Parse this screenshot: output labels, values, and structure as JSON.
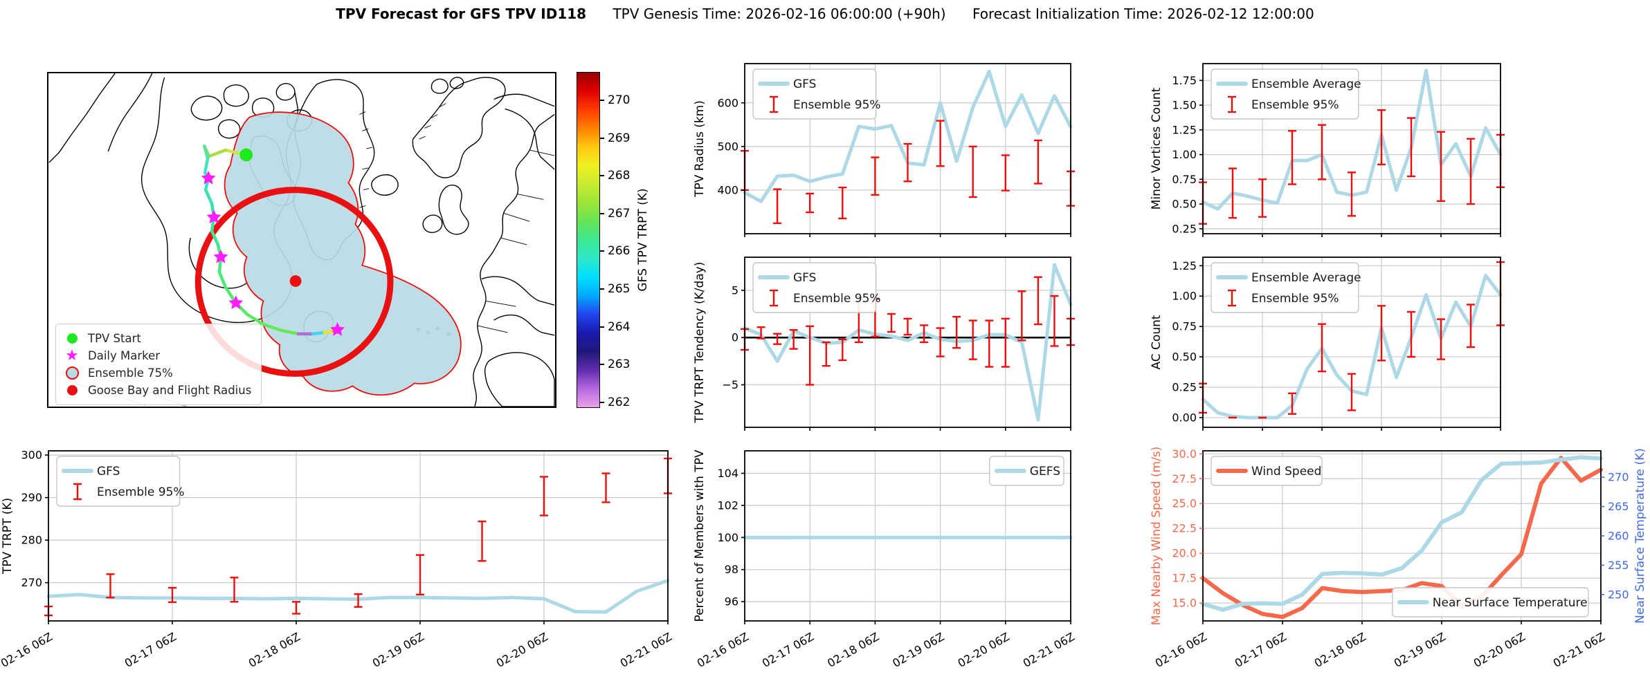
{
  "title": {
    "main": "TPV Forecast for GFS TPV ID118",
    "genesis": "TPV Genesis Time: 2026-02-16 06:00:00 (+90h)",
    "init": "Forecast Initialization Time: 2026-02-12 12:00:00"
  },
  "colors": {
    "lightblue": "#ADD8E6",
    "red": "#F10C0C",
    "tomato": "#F4694B",
    "royalblue": "#4169E1",
    "grid": "#C9C9C9",
    "ensemble_fill": "#B8DAE4",
    "ensemble_edge": "#F10C0C",
    "flight_circle": "#E81010",
    "tpv_start_green": "#1EE81E",
    "daily_marker_magenta": "#FF1CFF"
  },
  "map": {
    "legend": [
      {
        "marker": "tpv-start",
        "label": "TPV Start"
      },
      {
        "marker": "daily-marker",
        "label": "Daily Marker"
      },
      {
        "marker": "ensemble-75",
        "label": "Ensemble 75%"
      },
      {
        "marker": "goose-bay",
        "label": "Goose Bay and Flight Radius"
      }
    ],
    "colorbar": {
      "label": "GFS TPV TRPT (K)",
      "ticks": [
        262,
        263,
        264,
        265,
        266,
        267,
        268,
        269,
        270
      ],
      "gradient_bottom_to_top": [
        "#E8A0E8",
        "#B668E0",
        "#5F2DB0",
        "#201878",
        "#1A1AB0",
        "#2244EE",
        "#00AAFF",
        "#00E0FF",
        "#2EE8C8",
        "#3CE894",
        "#66E455",
        "#9BE436",
        "#C8EC30",
        "#F0F020",
        "#FFC810",
        "#FF8000",
        "#FF3C00",
        "#E00000",
        "#990000"
      ]
    }
  },
  "x_labels": [
    "02-16 06Z",
    "02-17 06Z",
    "02-18 06Z",
    "02-19 06Z",
    "02-20 06Z",
    "02-21 06Z"
  ],
  "chart_data": [
    {
      "id": "tpv-trpt",
      "type": "line",
      "ylabel": "TPV TRPT (K)",
      "ylim": [
        261,
        301
      ],
      "yticks": [
        270,
        280,
        290,
        300
      ],
      "ytick_labels": [
        "270",
        "280",
        "290",
        "300"
      ],
      "x_tick_indices": [
        0,
        4,
        8,
        12,
        16,
        20
      ],
      "show_x_labels": true,
      "series": [
        {
          "name": "GFS",
          "color": "lightblue",
          "values": [
            266.8,
            267.2,
            266.5,
            266.4,
            266.4,
            266.3,
            266.3,
            266.2,
            266.3,
            266.2,
            266.1,
            266.5,
            266.5,
            266.4,
            266.3,
            266.5,
            266.2,
            263.2,
            263.1,
            268.0,
            270.5
          ]
        }
      ],
      "error_bars": {
        "name": "Ensemble 95%",
        "color": "red",
        "indices": [
          0,
          2,
          4,
          6,
          8,
          10,
          12,
          14,
          16,
          18,
          20
        ],
        "ranges": [
          [
            262.3,
            264.4
          ],
          [
            266.5,
            272.0
          ],
          [
            265.4,
            268.8
          ],
          [
            265.5,
            271.2
          ],
          [
            262.7,
            265.5
          ],
          [
            264.3,
            267.3
          ],
          [
            267.2,
            276.5
          ],
          [
            275.1,
            284.4
          ],
          [
            285.8,
            294.9
          ],
          [
            288.9,
            295.7
          ],
          [
            291.0,
            299.2
          ]
        ]
      },
      "legends": [
        {
          "pos": "tl",
          "items": [
            {
              "type": "line",
              "color": "lightblue",
              "label": "GFS"
            },
            {
              "type": "errorbar",
              "color": "red",
              "label": "Ensemble 95%"
            }
          ]
        }
      ]
    },
    {
      "id": "tpv-radius",
      "type": "line",
      "ylabel": "TPV Radius (km)",
      "ylim": [
        300,
        690
      ],
      "yticks": [
        400,
        500,
        600
      ],
      "ytick_labels": [
        "400",
        "500",
        "600"
      ],
      "x_tick_indices": [
        0,
        4,
        8,
        12,
        16,
        20
      ],
      "show_x_labels": false,
      "series": [
        {
          "name": "GFS",
          "color": "lightblue",
          "values": [
            394,
            374,
            432,
            434,
            420,
            430,
            437,
            546,
            540,
            548,
            462,
            458,
            600,
            466,
            590,
            672,
            546,
            618,
            530,
            616,
            545
          ]
        }
      ],
      "error_bars": {
        "name": "Ensemble 95%",
        "color": "red",
        "indices": [
          0,
          2,
          4,
          6,
          8,
          10,
          12,
          14,
          16,
          18,
          20
        ],
        "ranges": [
          [
            400,
            490
          ],
          [
            324,
            402
          ],
          [
            349,
            392
          ],
          [
            335,
            406
          ],
          [
            389,
            475
          ],
          [
            420,
            506
          ],
          [
            455,
            559
          ],
          [
            384,
            500
          ],
          [
            399,
            480
          ],
          [
            415,
            514
          ],
          [
            364,
            443
          ]
        ]
      },
      "legends": [
        {
          "pos": "tl",
          "items": [
            {
              "type": "line",
              "color": "lightblue",
              "label": "GFS"
            },
            {
              "type": "errorbar",
              "color": "red",
              "label": "Ensemble 95%"
            }
          ]
        }
      ]
    },
    {
      "id": "trpt-tendency",
      "type": "line",
      "ylabel": "TPV TRPT Tendency (K/day)",
      "ylim": [
        -9.5,
        8.5
      ],
      "yticks": [
        -5,
        0,
        5
      ],
      "ytick_labels": [
        "−5",
        "0",
        "5"
      ],
      "x_tick_indices": [
        0,
        4,
        8,
        12,
        16,
        20
      ],
      "show_x_labels": false,
      "zero_line": true,
      "series": [
        {
          "name": "GFS",
          "color": "lightblue",
          "values": [
            1.0,
            0.3,
            -2.5,
            0.7,
            0.0,
            -0.6,
            -0.5,
            0.8,
            0.35,
            0.15,
            -0.3,
            0.5,
            -0.2,
            -0.4,
            -0.3,
            0.3,
            0.3,
            -0.5,
            -8.7,
            7.7,
            3.5
          ]
        }
      ],
      "error_bars": {
        "name": "Ensemble 95%",
        "color": "red",
        "indices": [
          0,
          1,
          2,
          3,
          4,
          5,
          6,
          7,
          8,
          9,
          10,
          11,
          12,
          13,
          14,
          15,
          16,
          17,
          18,
          19,
          20
        ],
        "ranges": [
          [
            -1.3,
            0.9
          ],
          [
            -0.1,
            1.1
          ],
          [
            -0.7,
            0.4
          ],
          [
            -1.2,
            0.8
          ],
          [
            -5.0,
            1.2
          ],
          [
            -3.0,
            -0.5
          ],
          [
            -2.4,
            -0.2
          ],
          [
            -0.5,
            3.8
          ],
          [
            0.1,
            4.1
          ],
          [
            0.6,
            2.5
          ],
          [
            0.3,
            2.0
          ],
          [
            -0.5,
            1.3
          ],
          [
            -2.0,
            1.0
          ],
          [
            -1.1,
            2.2
          ],
          [
            -2.3,
            1.8
          ],
          [
            -3.1,
            1.8
          ],
          [
            -3.1,
            2.0
          ],
          [
            -0.3,
            4.9
          ],
          [
            1.4,
            6.4
          ],
          [
            -0.9,
            4.4
          ],
          [
            -0.8,
            2.0
          ]
        ]
      },
      "legends": [
        {
          "pos": "tl",
          "items": [
            {
              "type": "line",
              "color": "lightblue",
              "label": "GFS"
            },
            {
              "type": "errorbar",
              "color": "red",
              "label": "Ensemble 95%"
            }
          ]
        }
      ]
    },
    {
      "id": "percent-members",
      "type": "line",
      "ylabel": "Percent of Members with TPV",
      "ylim": [
        94.8,
        105.4
      ],
      "yticks": [
        96,
        98,
        100,
        102,
        104
      ],
      "ytick_labels": [
        "96",
        "98",
        "100",
        "102",
        "104"
      ],
      "x_tick_indices": [
        0,
        4,
        8,
        12,
        16,
        20
      ],
      "show_x_labels": true,
      "series": [
        {
          "name": "GEFS",
          "color": "lightblue",
          "values": [
            100,
            100,
            100,
            100,
            100,
            100,
            100,
            100,
            100,
            100,
            100,
            100,
            100,
            100,
            100,
            100,
            100,
            100,
            100,
            100,
            100
          ]
        }
      ],
      "legends": [
        {
          "pos": "tr",
          "items": [
            {
              "type": "line",
              "color": "lightblue",
              "label": "GEFS"
            }
          ]
        }
      ]
    },
    {
      "id": "minor-vortices",
      "type": "line",
      "ylabel": "Minor Vortices Count",
      "ylim": [
        0.2,
        1.92
      ],
      "yticks": [
        0.25,
        0.5,
        0.75,
        1.0,
        1.25,
        1.5,
        1.75
      ],
      "ytick_labels": [
        "0.25",
        "0.50",
        "0.75",
        "1.00",
        "1.25",
        "1.50",
        "1.75"
      ],
      "x_tick_indices": [
        0,
        4,
        8,
        12,
        16,
        20
      ],
      "show_x_labels": false,
      "series": [
        {
          "name": "Ensemble Average",
          "color": "lightblue",
          "values": [
            0.52,
            0.45,
            0.61,
            0.58,
            0.54,
            0.51,
            0.94,
            0.94,
            1.0,
            0.62,
            0.59,
            0.62,
            1.2,
            0.64,
            1.07,
            1.85,
            0.9,
            1.11,
            0.78,
            1.27,
            1.0
          ]
        }
      ],
      "error_bars": {
        "name": "Ensemble 95%",
        "color": "red",
        "indices": [
          0,
          2,
          4,
          6,
          8,
          10,
          12,
          14,
          16,
          18,
          20
        ],
        "ranges": [
          [
            0.3,
            0.72
          ],
          [
            0.36,
            0.86
          ],
          [
            0.37,
            0.75
          ],
          [
            0.7,
            1.24
          ],
          [
            0.75,
            1.3
          ],
          [
            0.38,
            0.82
          ],
          [
            0.9,
            1.45
          ],
          [
            0.78,
            1.37
          ],
          [
            0.53,
            1.23
          ],
          [
            0.5,
            1.16
          ],
          [
            0.67,
            1.2
          ]
        ]
      },
      "legends": [
        {
          "pos": "tl",
          "items": [
            {
              "type": "line",
              "color": "lightblue",
              "label": "Ensemble Average"
            },
            {
              "type": "errorbar",
              "color": "red",
              "label": "Ensemble 95%"
            }
          ]
        }
      ]
    },
    {
      "id": "ac-count",
      "type": "line",
      "ylabel": "AC Count",
      "ylim": [
        -0.08,
        1.32
      ],
      "yticks": [
        0,
        0.25,
        0.5,
        0.75,
        1.0,
        1.25
      ],
      "ytick_labels": [
        "0.00",
        "0.25",
        "0.50",
        "0.75",
        "1.00",
        "1.25"
      ],
      "x_tick_indices": [
        0,
        4,
        8,
        12,
        16,
        20
      ],
      "show_x_labels": false,
      "series": [
        {
          "name": "Ensemble Average",
          "color": "lightblue",
          "values": [
            0.15,
            0.04,
            0.01,
            0.0,
            0.0,
            0.0,
            0.1,
            0.4,
            0.57,
            0.35,
            0.22,
            0.19,
            0.74,
            0.33,
            0.66,
            1.01,
            0.65,
            0.95,
            0.75,
            1.17,
            1.01
          ]
        }
      ],
      "error_bars": {
        "name": "Ensemble 95%",
        "color": "red",
        "indices": [
          0,
          2,
          4,
          6,
          8,
          10,
          12,
          14,
          16,
          18,
          20
        ],
        "ranges": [
          [
            0.04,
            0.28
          ],
          [
            0.0,
            0.0
          ],
          [
            0.0,
            0.0
          ],
          [
            0.03,
            0.2
          ],
          [
            0.38,
            0.77
          ],
          [
            0.06,
            0.36
          ],
          [
            0.47,
            0.92
          ],
          [
            0.5,
            0.87
          ],
          [
            0.48,
            0.81
          ],
          [
            0.58,
            0.93
          ],
          [
            0.76,
            1.28
          ]
        ]
      },
      "legends": [
        {
          "pos": "tl",
          "items": [
            {
              "type": "line",
              "color": "lightblue",
              "label": "Ensemble Average"
            },
            {
              "type": "errorbar",
              "color": "red",
              "label": "Ensemble 95%"
            }
          ]
        }
      ]
    },
    {
      "id": "wind-temp",
      "type": "line",
      "ylabel": "Max Nearby Wind Speed (m/s)",
      "ylabel_color": "tomato",
      "tick_color": "tomato",
      "ylim": [
        13.2,
        30.3
      ],
      "yticks": [
        15.0,
        17.5,
        20.0,
        22.5,
        25.0,
        27.5,
        30.0
      ],
      "ytick_labels": [
        "15.0",
        "17.5",
        "20.0",
        "22.5",
        "25.0",
        "27.5",
        "30.0"
      ],
      "x_tick_indices": [
        0,
        4,
        8,
        12,
        16,
        20
      ],
      "show_x_labels": true,
      "right_axis": {
        "ylabel": "Near Surface Temperature (K)",
        "color": "royalblue",
        "ylim": [
          245.5,
          274.5
        ],
        "yticks": [
          250,
          255,
          260,
          265,
          270
        ],
        "ytick_labels": [
          "250",
          "255",
          "260",
          "265",
          "270"
        ]
      },
      "series": [
        {
          "name": "Wind Speed",
          "color": "tomato",
          "width": 6,
          "values": [
            17.5,
            16.0,
            14.8,
            13.9,
            13.6,
            14.5,
            16.5,
            16.2,
            16.1,
            16.2,
            16.3,
            17.0,
            16.7,
            14.7,
            15.6,
            17.8,
            19.9,
            27.0,
            29.6,
            27.3,
            28.4
          ]
        },
        {
          "name": "Near Surface Temperature",
          "color": "lightblue",
          "axis": "right",
          "width": 6,
          "values": [
            248.4,
            247.4,
            248.4,
            248.5,
            248.4,
            250.0,
            253.5,
            253.7,
            253.6,
            253.4,
            254.5,
            257.5,
            262.3,
            264.0,
            269.5,
            272.3,
            272.4,
            272.5,
            273.0,
            273.4,
            273.2
          ]
        }
      ],
      "legends": [
        {
          "pos": "tl",
          "items": [
            {
              "type": "line",
              "color": "tomato",
              "label": "Wind Speed"
            }
          ]
        },
        {
          "pos": "br",
          "items": [
            {
              "type": "line",
              "color": "lightblue",
              "label": "Near Surface Temperature"
            }
          ]
        }
      ]
    }
  ]
}
